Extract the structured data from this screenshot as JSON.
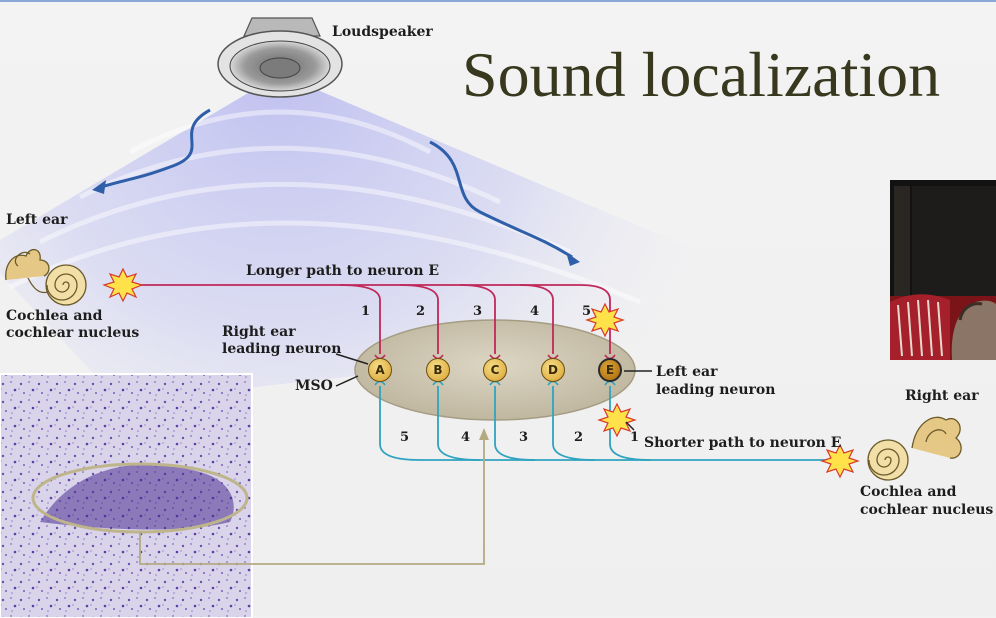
{
  "slide": {
    "title": "Sound localization"
  },
  "diagram": {
    "loudspeaker_label": "Loudspeaker",
    "left_ear_label": "Left ear",
    "left_cochlea_label_line1": "Cochlea and",
    "left_cochlea_label_line2": "cochlear nucleus",
    "right_ear_label": "Right ear",
    "right_cochlea_label_line1": "Cochlea and",
    "right_cochlea_label_line2": "cochlear nucleus",
    "longer_path_label": "Longer path to neuron E",
    "shorter_path_label": "Shorter path to neuron E",
    "right_leading_label_line1": "Right ear",
    "right_leading_label_line2": "leading neuron",
    "left_leading_label_line1": "Left ear",
    "left_leading_label_line2": "leading neuron",
    "mso_label": "MSO",
    "neurons": [
      "A",
      "B",
      "C",
      "D",
      "E"
    ],
    "left_path_numbers": [
      "1",
      "2",
      "3",
      "4",
      "5"
    ],
    "right_path_numbers": [
      "5",
      "4",
      "3",
      "2",
      "1"
    ],
    "colors": {
      "left_pathway": "#c0285a",
      "right_pathway": "#2fa3c0",
      "mso_fill": "#cfc8b4",
      "neuron_fill": "#e7bf5a",
      "stain": "#5a3aa0",
      "title": "#38381e"
    }
  }
}
